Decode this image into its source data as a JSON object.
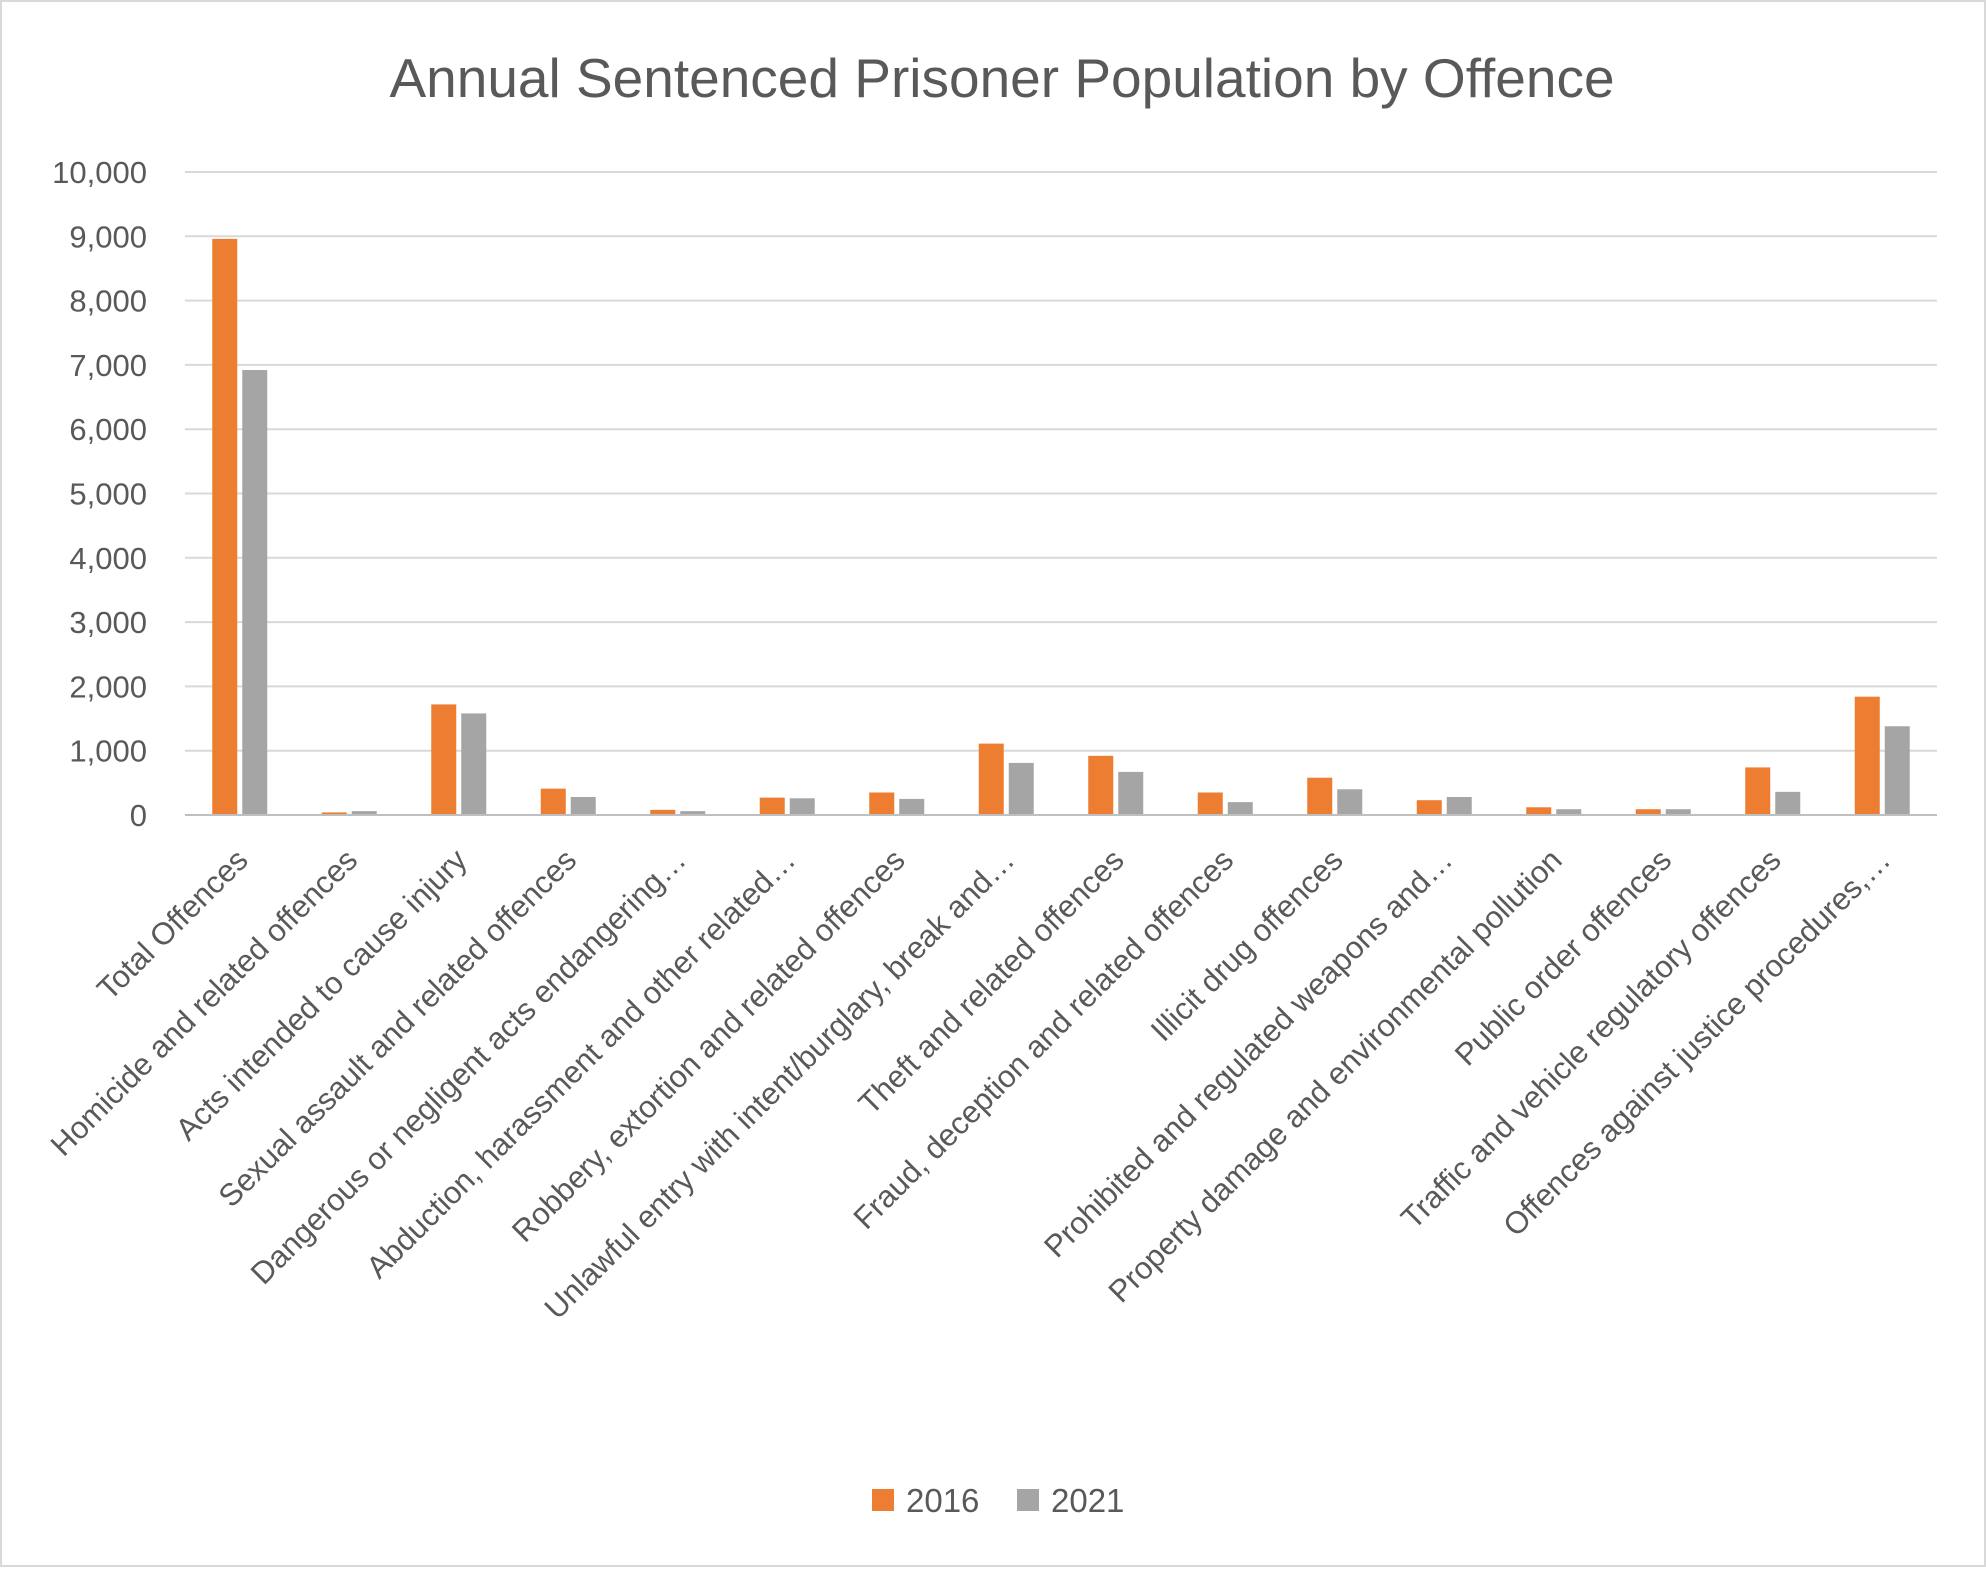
{
  "chart_data": {
    "type": "bar",
    "title": "Annual Sentenced Prisoner Population by Offence",
    "xlabel": "",
    "ylabel": "",
    "ylim": [
      0,
      10000
    ],
    "y_ticks": [
      0,
      1000,
      2000,
      3000,
      4000,
      5000,
      6000,
      7000,
      8000,
      9000,
      10000
    ],
    "y_tick_labels": [
      "0",
      "1,000",
      "2,000",
      "3,000",
      "4,000",
      "5,000",
      "6,000",
      "7,000",
      "8,000",
      "9,000",
      "10,000"
    ],
    "grid": true,
    "legend_position": "bottom",
    "categories": [
      "Total Offences",
      "Homicide and related offences",
      "Acts intended to cause injury",
      "Sexual assault and related offences",
      "Dangerous or negligent acts endangering…",
      "Abduction, harassment and other related…",
      "Robbery, extortion and related offences",
      "Unlawful entry with intent/burglary, break and…",
      "Theft and related offences",
      "Fraud, deception and related offences",
      "Illicit drug offences",
      "Prohibited and regulated weapons and…",
      "Property damage and environmental pollution",
      "Public order offences",
      "Traffic and vehicle regulatory offences",
      "Offences against justice procedures,…"
    ],
    "series": [
      {
        "name": "2016",
        "color": "#ed7d31",
        "values": [
          8960,
          40,
          1720,
          410,
          80,
          270,
          350,
          1110,
          920,
          350,
          580,
          230,
          120,
          90,
          740,
          1840
        ]
      },
      {
        "name": "2021",
        "color": "#a5a5a5",
        "values": [
          6920,
          60,
          1580,
          280,
          60,
          260,
          250,
          810,
          670,
          200,
          400,
          280,
          90,
          90,
          360,
          1380
        ]
      }
    ]
  }
}
